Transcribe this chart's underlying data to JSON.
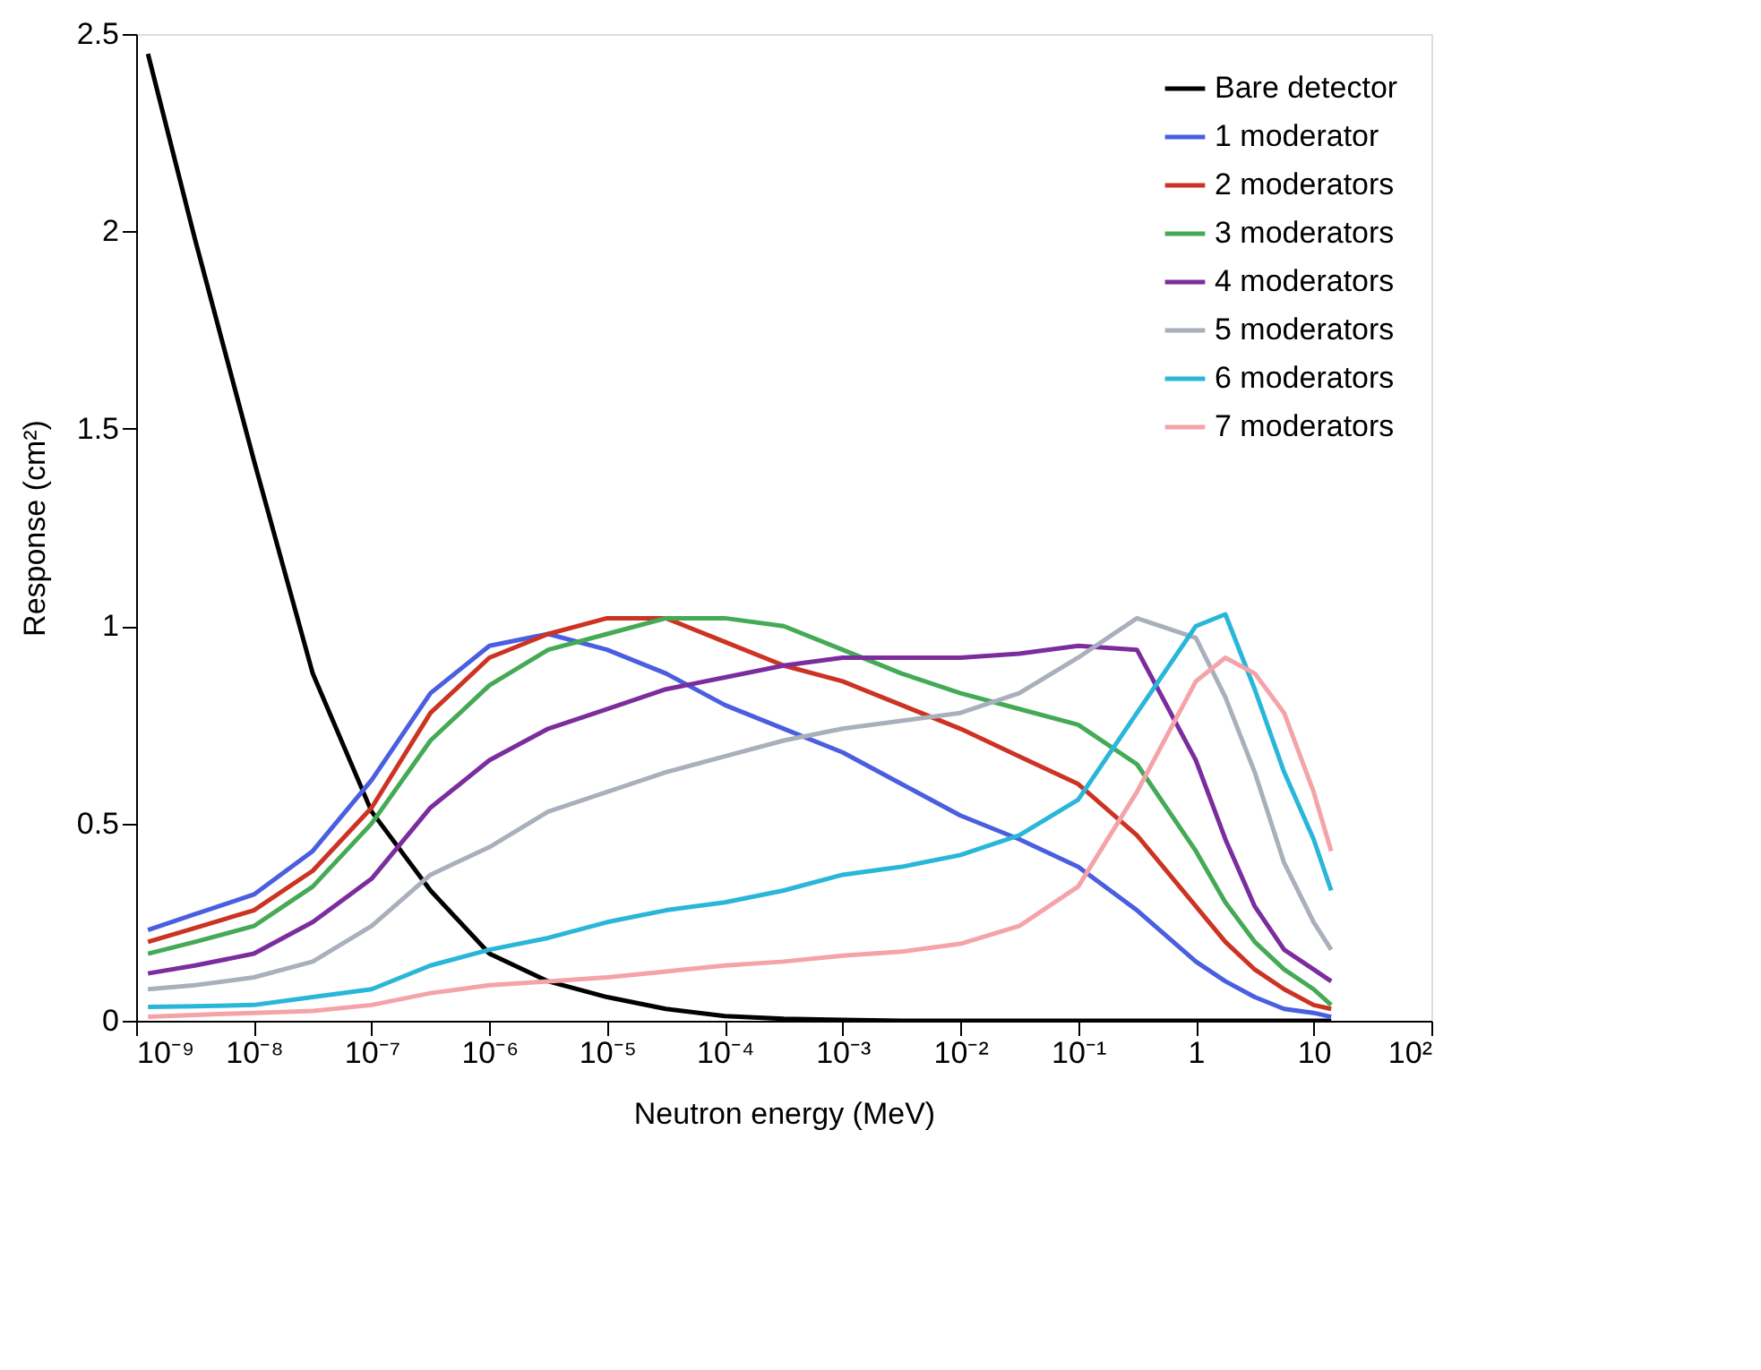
{
  "chart_data": {
    "type": "line",
    "xlabel": "Neutron energy (MeV)",
    "ylabel": "Response (cm²)",
    "x": [
      1.26e-09,
      3.16e-09,
      1e-08,
      3.16e-08,
      1e-07,
      3.16e-07,
      1e-06,
      3.16e-06,
      1e-05,
      3.16e-05,
      0.0001,
      0.000316,
      0.001,
      0.00316,
      0.01,
      0.0316,
      0.1,
      0.316,
      1,
      1.78,
      3.16,
      5.62,
      10,
      14.1
    ],
    "series": [
      {
        "name": "Bare detector",
        "color": "#000000",
        "values": [
          2.45,
          1.98,
          1.42,
          0.88,
          0.53,
          0.33,
          0.17,
          0.1,
          0.06,
          0.03,
          0.012,
          0.005,
          0.002,
          0,
          0,
          0,
          0,
          0,
          0,
          0,
          0,
          0,
          0,
          0
        ]
      },
      {
        "name": "1 moderator",
        "color": "#4a5ee0",
        "values": [
          0.23,
          0.27,
          0.32,
          0.43,
          0.61,
          0.83,
          0.95,
          0.98,
          0.94,
          0.88,
          0.8,
          0.74,
          0.68,
          0.6,
          0.52,
          0.46,
          0.39,
          0.28,
          0.15,
          0.1,
          0.06,
          0.03,
          0.02,
          0.01
        ]
      },
      {
        "name": "2 moderators",
        "color": "#cc3322",
        "values": [
          0.2,
          0.235,
          0.28,
          0.38,
          0.54,
          0.78,
          0.92,
          0.98,
          1.02,
          1.02,
          0.96,
          0.9,
          0.86,
          0.8,
          0.74,
          0.67,
          0.6,
          0.47,
          0.29,
          0.2,
          0.13,
          0.08,
          0.04,
          0.03
        ]
      },
      {
        "name": "3 moderators",
        "color": "#44aa55",
        "values": [
          0.17,
          0.2,
          0.24,
          0.34,
          0.5,
          0.71,
          0.85,
          0.94,
          0.98,
          1.02,
          1.02,
          1.0,
          0.94,
          0.88,
          0.83,
          0.79,
          0.75,
          0.65,
          0.43,
          0.3,
          0.2,
          0.13,
          0.08,
          0.04
        ]
      },
      {
        "name": "4 moderators",
        "color": "#7b2d9e",
        "values": [
          0.12,
          0.14,
          0.17,
          0.25,
          0.36,
          0.54,
          0.66,
          0.74,
          0.79,
          0.84,
          0.87,
          0.9,
          0.92,
          0.92,
          0.92,
          0.93,
          0.95,
          0.94,
          0.66,
          0.46,
          0.29,
          0.18,
          0.13,
          0.1
        ]
      },
      {
        "name": "5 moderators",
        "color": "#a9b0bc",
        "values": [
          0.08,
          0.09,
          0.11,
          0.15,
          0.24,
          0.37,
          0.44,
          0.53,
          0.58,
          0.63,
          0.67,
          0.71,
          0.74,
          0.76,
          0.78,
          0.83,
          0.92,
          1.02,
          0.97,
          0.82,
          0.63,
          0.4,
          0.25,
          0.18
        ]
      },
      {
        "name": "6 moderators",
        "color": "#29b6d8",
        "values": [
          0.035,
          0.037,
          0.04,
          0.06,
          0.08,
          0.14,
          0.18,
          0.21,
          0.25,
          0.28,
          0.3,
          0.33,
          0.37,
          0.39,
          0.42,
          0.47,
          0.56,
          0.78,
          1.0,
          1.03,
          0.84,
          0.63,
          0.46,
          0.33
        ]
      },
      {
        "name": "7 moderators",
        "color": "#f4a3a8",
        "values": [
          0.01,
          0.015,
          0.02,
          0.025,
          0.04,
          0.07,
          0.09,
          0.1,
          0.11,
          0.125,
          0.14,
          0.15,
          0.165,
          0.175,
          0.195,
          0.24,
          0.34,
          0.58,
          0.86,
          0.92,
          0.88,
          0.78,
          0.58,
          0.43
        ]
      }
    ],
    "log": "x",
    "xlim": [
      1e-09,
      100
    ],
    "xticks": [
      {
        "value": 1e-09,
        "label": "10⁻⁹"
      },
      {
        "value": 1e-08,
        "label": "10⁻⁸"
      },
      {
        "value": 1e-07,
        "label": "10⁻⁷"
      },
      {
        "value": 1e-06,
        "label": "10⁻⁶"
      },
      {
        "value": 1e-05,
        "label": "10⁻⁵"
      },
      {
        "value": 0.0001,
        "label": "10⁻⁴"
      },
      {
        "value": 0.001,
        "label": "10⁻³"
      },
      {
        "value": 0.01,
        "label": "10⁻²"
      },
      {
        "value": 0.1,
        "label": "10⁻¹"
      },
      1,
      10,
      {
        "value": 100,
        "label": "10²"
      }
    ],
    "ylim": [
      0,
      2.5
    ],
    "yticks": [
      0,
      0.5,
      1,
      1.5,
      2,
      2.5
    ],
    "grid": false,
    "legend": "top right",
    "marker": "none",
    "line_style": "solid"
  }
}
